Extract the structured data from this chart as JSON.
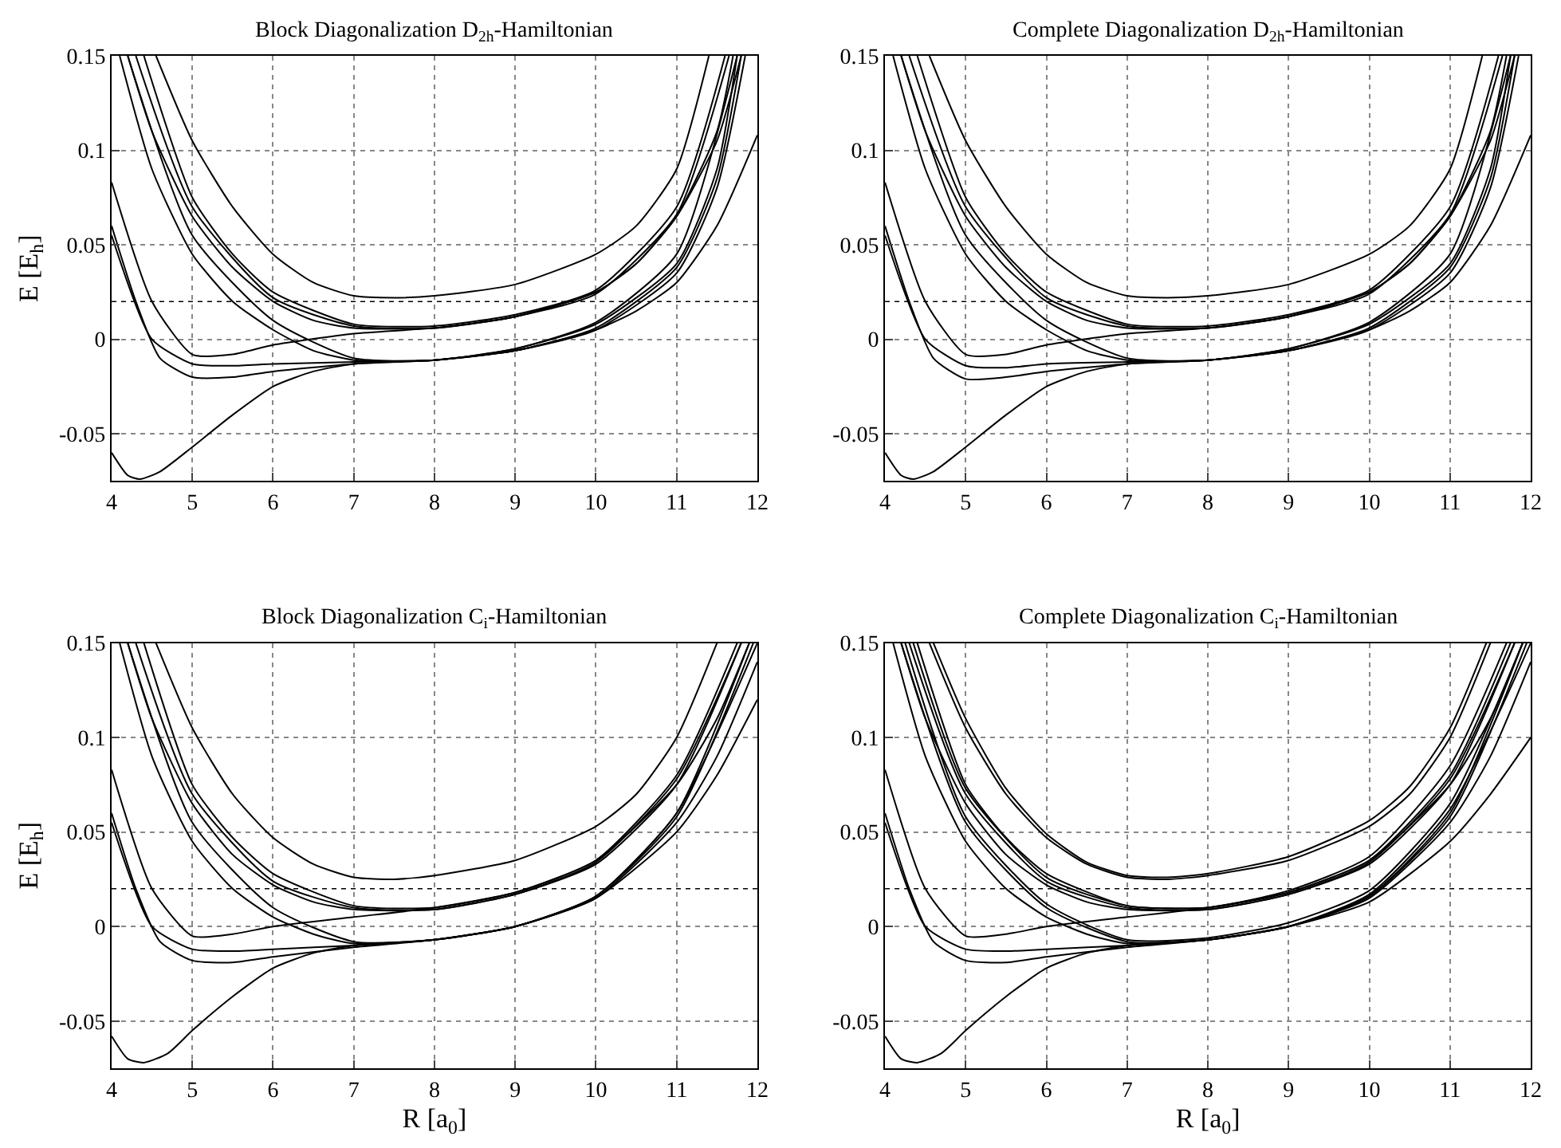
{
  "chart_data": [
    {
      "type": "line",
      "title": "Block Diagonalization D$_{2h}$-Hamiltonian",
      "ylabel": "E [E$_{h}$]",
      "xlim": [
        4,
        12
      ],
      "ylim": [
        -0.075,
        0.15
      ],
      "xticks": [
        4,
        5,
        6,
        7,
        8,
        9,
        10,
        11,
        12
      ],
      "yticks": [
        -0.05,
        0,
        0.05,
        0.1,
        0.15
      ],
      "grid": true,
      "ref_lines": [
        {
          "axis": "y",
          "value": 0.02,
          "line_style": "dotted",
          "color": "#000000"
        }
      ],
      "series": [
        {
          "color": "#000000",
          "x": [
            4,
            4.2,
            4.35,
            4.6,
            5,
            5.5,
            6,
            6.5,
            7,
            8,
            9,
            10,
            10.5,
            11,
            11.5,
            12
          ],
          "values": [
            -0.06,
            -0.072,
            -0.074,
            -0.07,
            -0.057,
            -0.04,
            -0.025,
            -0.017,
            -0.013,
            -0.011,
            -0.006,
            0.005,
            0.015,
            0.03,
            0.06,
            0.108
          ]
        },
        {
          "color": "#000000",
          "x": [
            4,
            4.3,
            4.6,
            5,
            5.5,
            6,
            7,
            8,
            9,
            10,
            11,
            11.5,
            11.85
          ],
          "values": [
            0.06,
            0.02,
            -0.01,
            -0.02,
            -0.02,
            -0.017,
            -0.013,
            -0.011,
            -0.006,
            0.005,
            0.035,
            0.08,
            0.15
          ]
        },
        {
          "color": "#000000",
          "x": [
            4,
            4.5,
            5,
            5.5,
            6,
            7,
            8,
            9,
            10,
            11,
            11.5,
            11.8
          ],
          "values": [
            0.055,
            0.0,
            -0.013,
            -0.014,
            -0.013,
            -0.012,
            -0.011,
            -0.006,
            0.006,
            0.038,
            0.085,
            0.15
          ]
        },
        {
          "color": "#000000",
          "x": [
            4,
            4.5,
            5,
            5.5,
            6,
            7,
            8,
            9,
            10,
            10.5,
            11,
            11.5,
            11.8
          ],
          "values": [
            0.083,
            0.02,
            -0.008,
            -0.008,
            -0.003,
            0.003,
            0.006,
            0.012,
            0.025,
            0.04,
            0.065,
            0.105,
            0.15
          ]
        },
        {
          "color": "#000000",
          "x": [
            4.1,
            4.5,
            5,
            5.5,
            6,
            6.5,
            7,
            8,
            9,
            10,
            11,
            11.5,
            11.75
          ],
          "values": [
            0.15,
            0.09,
            0.045,
            0.02,
            0.005,
            -0.006,
            -0.011,
            -0.011,
            -0.005,
            0.008,
            0.04,
            0.09,
            0.15
          ]
        },
        {
          "color": "#000000",
          "x": [
            4.2,
            4.5,
            5,
            5.5,
            6,
            6.5,
            7,
            8,
            9,
            10,
            10.5,
            11,
            11.5,
            11.7
          ],
          "values": [
            0.15,
            0.11,
            0.065,
            0.038,
            0.02,
            0.01,
            0.006,
            0.006,
            0.012,
            0.025,
            0.04,
            0.065,
            0.11,
            0.15
          ]
        },
        {
          "color": "#000000",
          "x": [
            4.4,
            5,
            5.5,
            6,
            7,
            8,
            9,
            10,
            11,
            11.6
          ],
          "values": [
            0.15,
            0.075,
            0.045,
            0.025,
            0.008,
            0.007,
            0.013,
            0.026,
            0.07,
            0.15
          ]
        },
        {
          "color": "#000000",
          "x": [
            4.55,
            5,
            5.5,
            6,
            6.5,
            7,
            7.5,
            8,
            9,
            10,
            10.5,
            11,
            11.4
          ],
          "values": [
            0.15,
            0.105,
            0.07,
            0.045,
            0.03,
            0.023,
            0.022,
            0.023,
            0.029,
            0.045,
            0.06,
            0.09,
            0.15
          ]
        },
        {
          "color": "#000000",
          "x": [
            4.3,
            5,
            6,
            7,
            8,
            9,
            10,
            11,
            11.65
          ],
          "values": [
            0.15,
            0.07,
            0.022,
            0.007,
            0.006,
            0.012,
            0.024,
            0.066,
            0.15
          ]
        },
        {
          "color": "#000000",
          "x": [
            4.2,
            5,
            6,
            7,
            8,
            9,
            10,
            11,
            11.75
          ],
          "values": [
            0.15,
            0.055,
            0.01,
            -0.01,
            -0.011,
            -0.005,
            0.009,
            0.045,
            0.15
          ]
        }
      ]
    },
    {
      "type": "line",
      "title": "Complete Diagonalization D$_{2h}$-Hamiltonian",
      "xlim": [
        4,
        12
      ],
      "ylim": [
        -0.075,
        0.15
      ],
      "xticks": [
        4,
        5,
        6,
        7,
        8,
        9,
        10,
        11,
        12
      ],
      "yticks": [
        -0.05,
        0,
        0.05,
        0.1,
        0.15
      ],
      "grid": true,
      "ref_lines": [
        {
          "axis": "y",
          "value": 0.02,
          "line_style": "dotted",
          "color": "#000000"
        }
      ],
      "series": [
        {
          "color": "#000000",
          "x": [
            4,
            4.2,
            4.35,
            4.6,
            5,
            5.5,
            6,
            6.5,
            7,
            8,
            9,
            10,
            10.5,
            11,
            11.5,
            12
          ],
          "values": [
            -0.06,
            -0.072,
            -0.074,
            -0.07,
            -0.057,
            -0.04,
            -0.025,
            -0.017,
            -0.013,
            -0.011,
            -0.006,
            0.005,
            0.015,
            0.03,
            0.06,
            0.108
          ]
        },
        {
          "color": "#000000",
          "x": [
            4,
            4.3,
            4.6,
            5,
            5.5,
            6,
            7,
            8,
            9,
            10,
            11,
            11.5,
            11.85
          ],
          "values": [
            0.06,
            0.02,
            -0.01,
            -0.021,
            -0.02,
            -0.017,
            -0.013,
            -0.011,
            -0.006,
            0.005,
            0.035,
            0.08,
            0.15
          ]
        },
        {
          "color": "#000000",
          "x": [
            4,
            4.5,
            5,
            5.5,
            6,
            7,
            8,
            9,
            10,
            11,
            11.5,
            11.8
          ],
          "values": [
            0.055,
            0.0,
            -0.014,
            -0.015,
            -0.013,
            -0.012,
            -0.011,
            -0.006,
            0.006,
            0.038,
            0.085,
            0.15
          ]
        },
        {
          "color": "#000000",
          "x": [
            4,
            4.5,
            5,
            5.5,
            6,
            7,
            8,
            9,
            10,
            10.5,
            11,
            11.5,
            11.8
          ],
          "values": [
            0.083,
            0.02,
            -0.008,
            -0.008,
            -0.003,
            0.003,
            0.006,
            0.012,
            0.025,
            0.04,
            0.065,
            0.105,
            0.15
          ]
        },
        {
          "color": "#000000",
          "x": [
            4.1,
            4.5,
            5,
            5.5,
            6,
            6.5,
            7,
            8,
            9,
            10,
            11,
            11.5,
            11.75
          ],
          "values": [
            0.15,
            0.09,
            0.045,
            0.02,
            0.005,
            -0.006,
            -0.011,
            -0.011,
            -0.005,
            0.008,
            0.04,
            0.09,
            0.15
          ]
        },
        {
          "color": "#000000",
          "x": [
            4.2,
            4.5,
            5,
            5.5,
            6,
            6.5,
            7,
            8,
            9,
            10,
            10.5,
            11,
            11.5,
            11.7
          ],
          "values": [
            0.15,
            0.11,
            0.065,
            0.038,
            0.02,
            0.01,
            0.006,
            0.006,
            0.012,
            0.025,
            0.04,
            0.065,
            0.11,
            0.15
          ]
        },
        {
          "color": "#000000",
          "x": [
            4.4,
            5,
            5.5,
            6,
            7,
            8,
            9,
            10,
            11,
            11.6
          ],
          "values": [
            0.15,
            0.075,
            0.045,
            0.025,
            0.008,
            0.007,
            0.013,
            0.026,
            0.07,
            0.15
          ]
        },
        {
          "color": "#000000",
          "x": [
            4.55,
            5,
            5.5,
            6,
            6.5,
            7,
            7.5,
            8,
            9,
            10,
            10.5,
            11,
            11.4
          ],
          "values": [
            0.15,
            0.105,
            0.07,
            0.045,
            0.03,
            0.023,
            0.022,
            0.023,
            0.029,
            0.045,
            0.06,
            0.09,
            0.15
          ]
        },
        {
          "color": "#000000",
          "x": [
            4.3,
            5,
            6,
            7,
            8,
            9,
            10,
            11,
            11.65
          ],
          "values": [
            0.15,
            0.07,
            0.022,
            0.007,
            0.006,
            0.012,
            0.024,
            0.066,
            0.15
          ]
        },
        {
          "color": "#000000",
          "x": [
            4.2,
            5,
            6,
            7,
            8,
            9,
            10,
            11,
            11.75
          ],
          "values": [
            0.15,
            0.055,
            0.01,
            -0.01,
            -0.011,
            -0.005,
            0.009,
            0.045,
            0.15
          ]
        }
      ]
    },
    {
      "type": "line",
      "title": "Block Diagonalization C$_{i}$-Hamiltonian",
      "xlabel": "R [a$_{0}$]",
      "ylabel": "E [E$_{h}$]",
      "xlim": [
        4,
        12
      ],
      "ylim": [
        -0.075,
        0.15
      ],
      "xticks": [
        4,
        5,
        6,
        7,
        8,
        9,
        10,
        11,
        12
      ],
      "yticks": [
        -0.05,
        0,
        0.05,
        0.1,
        0.15
      ],
      "grid": true,
      "ref_lines": [
        {
          "axis": "y",
          "value": 0.02,
          "line_style": "dotted",
          "color": "#000000"
        }
      ],
      "series": [
        {
          "color": "#000000",
          "x": [
            4,
            4.2,
            4.4,
            4.7,
            5,
            5.5,
            6,
            6.5,
            7,
            8,
            9,
            10,
            11,
            11.5,
            12
          ],
          "values": [
            -0.058,
            -0.07,
            -0.072,
            -0.067,
            -0.055,
            -0.037,
            -0.022,
            -0.014,
            -0.01,
            -0.007,
            0.0,
            0.015,
            0.05,
            0.08,
            0.12
          ]
        },
        {
          "color": "#000000",
          "x": [
            4,
            4.3,
            4.6,
            5,
            5.5,
            6,
            7,
            8,
            9,
            10,
            11,
            11.5,
            12
          ],
          "values": [
            0.06,
            0.02,
            -0.008,
            -0.018,
            -0.019,
            -0.016,
            -0.011,
            -0.007,
            0.0,
            0.015,
            0.055,
            0.09,
            0.14
          ]
        },
        {
          "color": "#000000",
          "x": [
            4,
            4.5,
            5,
            5.5,
            6,
            7,
            8,
            9,
            10,
            11,
            12
          ],
          "values": [
            0.055,
            0.0,
            -0.012,
            -0.013,
            -0.012,
            -0.01,
            -0.007,
            0.0,
            0.016,
            0.06,
            0.15
          ]
        },
        {
          "color": "#000000",
          "x": [
            4,
            4.5,
            5,
            5.5,
            6,
            7,
            8,
            9,
            10,
            11,
            11.5,
            11.9
          ],
          "values": [
            0.083,
            0.02,
            -0.005,
            -0.004,
            0.0,
            0.005,
            0.01,
            0.018,
            0.035,
            0.075,
            0.11,
            0.15
          ]
        },
        {
          "color": "#000000",
          "x": [
            4.1,
            4.5,
            5,
            5.5,
            6,
            6.5,
            7,
            8,
            9,
            10,
            11,
            11.9
          ],
          "values": [
            0.15,
            0.09,
            0.045,
            0.02,
            0.005,
            -0.004,
            -0.009,
            -0.007,
            0.0,
            0.016,
            0.06,
            0.15
          ]
        },
        {
          "color": "#000000",
          "x": [
            4.2,
            4.5,
            5,
            5.5,
            6,
            6.5,
            7,
            8,
            9,
            10,
            11,
            11.8
          ],
          "values": [
            0.15,
            0.11,
            0.065,
            0.038,
            0.022,
            0.013,
            0.009,
            0.009,
            0.017,
            0.033,
            0.075,
            0.15
          ]
        },
        {
          "color": "#000000",
          "x": [
            4.4,
            5,
            5.5,
            6,
            7,
            8,
            9,
            10,
            11,
            11.75
          ],
          "values": [
            0.15,
            0.075,
            0.047,
            0.028,
            0.011,
            0.01,
            0.018,
            0.035,
            0.08,
            0.15
          ]
        },
        {
          "color": "#000000",
          "x": [
            4.55,
            5,
            5.5,
            6,
            6.5,
            7,
            7.5,
            8,
            9,
            10,
            10.5,
            11,
            11.5
          ],
          "values": [
            0.15,
            0.105,
            0.07,
            0.047,
            0.033,
            0.026,
            0.025,
            0.027,
            0.035,
            0.053,
            0.07,
            0.1,
            0.15
          ]
        },
        {
          "color": "#000000",
          "x": [
            4.3,
            5,
            6,
            7,
            8,
            9,
            10,
            11,
            11.8
          ],
          "values": [
            0.15,
            0.07,
            0.024,
            0.01,
            0.009,
            0.017,
            0.034,
            0.078,
            0.15
          ]
        },
        {
          "color": "#000000",
          "x": [
            4.2,
            5,
            6,
            7,
            8,
            9,
            10,
            11,
            11.95
          ],
          "values": [
            0.15,
            0.055,
            0.01,
            -0.008,
            -0.007,
            0.0,
            0.016,
            0.058,
            0.15
          ]
        }
      ]
    },
    {
      "type": "line",
      "title": "Complete Diagonalization C$_{i}$-Hamiltonian",
      "xlabel": "R [a$_{0}$]",
      "xlim": [
        4,
        12
      ],
      "ylim": [
        -0.075,
        0.15
      ],
      "xticks": [
        4,
        5,
        6,
        7,
        8,
        9,
        10,
        11,
        12
      ],
      "yticks": [
        -0.05,
        0,
        0.05,
        0.1,
        0.15
      ],
      "grid": true,
      "ref_lines": [
        {
          "axis": "y",
          "value": 0.02,
          "line_style": "dotted",
          "color": "#000000"
        }
      ],
      "series": [
        {
          "color": "#000000",
          "x": [
            4,
            4.2,
            4.4,
            4.7,
            5,
            5.5,
            6,
            6.5,
            7,
            8,
            9,
            10,
            11,
            11.5,
            12
          ],
          "values": [
            -0.058,
            -0.07,
            -0.072,
            -0.067,
            -0.055,
            -0.037,
            -0.022,
            -0.014,
            -0.01,
            -0.007,
            0.0,
            0.013,
            0.045,
            0.07,
            0.1
          ]
        },
        {
          "color": "#000000",
          "x": [
            4,
            4.3,
            4.6,
            5,
            5.5,
            6,
            7,
            8,
            9,
            10,
            11,
            11.5,
            12
          ],
          "values": [
            0.06,
            0.02,
            -0.008,
            -0.018,
            -0.019,
            -0.016,
            -0.011,
            -0.007,
            0.0,
            0.015,
            0.055,
            0.09,
            0.14
          ]
        },
        {
          "color": "#000000",
          "x": [
            4,
            4.5,
            5,
            5.5,
            6,
            7,
            8,
            9,
            10,
            11,
            12
          ],
          "values": [
            0.055,
            0.0,
            -0.012,
            -0.013,
            -0.012,
            -0.01,
            -0.007,
            0.0,
            0.017,
            0.062,
            0.15
          ]
        },
        {
          "color": "#000000",
          "x": [
            4,
            4.5,
            5,
            5.5,
            6,
            7,
            8,
            9,
            10,
            11,
            11.5,
            11.9
          ],
          "values": [
            0.083,
            0.02,
            -0.005,
            -0.004,
            0.0,
            0.005,
            0.01,
            0.018,
            0.035,
            0.075,
            0.11,
            0.15
          ]
        },
        {
          "color": "#000000",
          "x": [
            4.1,
            4.5,
            5,
            5.5,
            6,
            6.5,
            7,
            8,
            9,
            10,
            11,
            11.9
          ],
          "values": [
            0.15,
            0.09,
            0.045,
            0.02,
            0.005,
            -0.004,
            -0.009,
            -0.007,
            0.0,
            0.016,
            0.06,
            0.15
          ]
        },
        {
          "color": "#000000",
          "x": [
            4.2,
            4.5,
            5,
            5.5,
            6,
            6.5,
            7,
            8,
            9,
            10,
            11,
            11.8
          ],
          "values": [
            0.15,
            0.11,
            0.065,
            0.038,
            0.022,
            0.013,
            0.009,
            0.009,
            0.017,
            0.033,
            0.075,
            0.15
          ]
        },
        {
          "color": "#000000",
          "x": [
            4.4,
            5,
            5.5,
            6,
            7,
            8,
            9,
            10,
            11,
            11.75
          ],
          "values": [
            0.15,
            0.075,
            0.047,
            0.028,
            0.011,
            0.01,
            0.018,
            0.035,
            0.08,
            0.15
          ]
        },
        {
          "color": "#000000",
          "x": [
            4.55,
            5,
            5.5,
            6,
            6.5,
            7,
            7.5,
            8,
            9,
            10,
            10.5,
            11,
            11.5
          ],
          "values": [
            0.15,
            0.105,
            0.07,
            0.047,
            0.033,
            0.026,
            0.025,
            0.027,
            0.035,
            0.053,
            0.07,
            0.1,
            0.15
          ]
        },
        {
          "color": "#000000",
          "x": [
            4.6,
            5,
            5.5,
            6,
            6.5,
            7,
            7.5,
            8,
            9,
            10,
            10.5,
            11,
            11.45
          ],
          "values": [
            0.15,
            0.11,
            0.073,
            0.049,
            0.034,
            0.027,
            0.026,
            0.028,
            0.037,
            0.056,
            0.074,
            0.105,
            0.15
          ]
        },
        {
          "color": "#000000",
          "x": [
            4.3,
            5,
            6,
            7,
            8,
            9,
            10,
            11,
            11.8
          ],
          "values": [
            0.15,
            0.07,
            0.024,
            0.01,
            0.009,
            0.017,
            0.034,
            0.078,
            0.15
          ]
        },
        {
          "color": "#000000",
          "x": [
            4.35,
            5,
            6,
            7,
            8,
            9,
            10,
            11,
            11.7
          ],
          "values": [
            0.15,
            0.073,
            0.026,
            0.011,
            0.01,
            0.019,
            0.037,
            0.085,
            0.15
          ]
        },
        {
          "color": "#000000",
          "x": [
            4.2,
            5,
            6,
            7,
            8,
            9,
            10,
            11,
            11.95
          ],
          "values": [
            0.15,
            0.055,
            0.01,
            -0.008,
            -0.007,
            0.0,
            0.016,
            0.058,
            0.15
          ]
        },
        {
          "color": "#000000",
          "x": [
            4.25,
            5,
            6,
            7,
            8,
            9,
            10,
            11,
            11.9
          ],
          "values": [
            0.15,
            0.058,
            0.012,
            -0.007,
            -0.006,
            0.002,
            0.019,
            0.065,
            0.15
          ]
        }
      ]
    }
  ]
}
